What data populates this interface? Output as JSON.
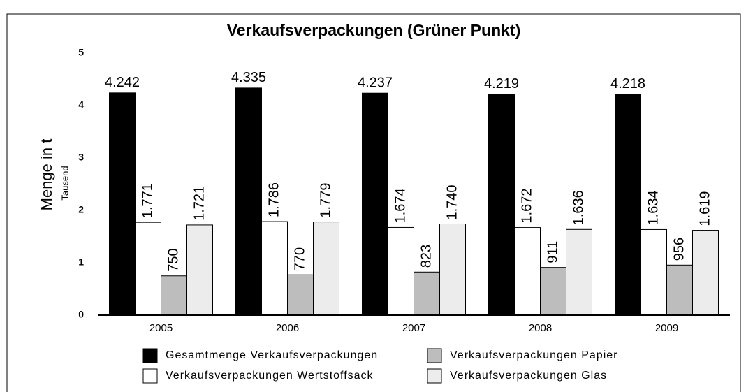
{
  "chart_data": {
    "type": "bar",
    "title": "Verkaufsverpackungen (Grüner Punkt)",
    "y_label": "Menge in t",
    "y_unit": "Tausend",
    "categories": [
      "2005",
      "2006",
      "2007",
      "2008",
      "2009"
    ],
    "series": [
      {
        "name": "Gesamtmenge Verkaufsverpackungen",
        "color": "#000000",
        "values": [
          4.242,
          4.335,
          4.237,
          4.219,
          4.218
        ],
        "value_labels": [
          "4.242",
          "4.335",
          "4.237",
          "4.219",
          "4.218"
        ]
      },
      {
        "name": "Verkaufsverpackungen Wertstoffsack",
        "color": "#ffffff",
        "values": [
          1.771,
          1.786,
          1.674,
          1.672,
          1.634
        ],
        "value_labels": [
          "1.771",
          "1.786",
          "1.674",
          "1.672",
          "1.634"
        ]
      },
      {
        "name": "Verkaufsverpackungen Papier",
        "color": "#bdbdbd",
        "values": [
          0.75,
          0.77,
          0.823,
          0.911,
          0.956
        ],
        "value_labels": [
          "750",
          "770",
          "823",
          "911",
          "956"
        ]
      },
      {
        "name": "Verkaufsverpackungen Glas",
        "color": "#ececec",
        "values": [
          1.721,
          1.779,
          1.74,
          1.636,
          1.619
        ],
        "value_labels": [
          "1.721",
          "1.779",
          "1.740",
          "1.636",
          "1.619"
        ]
      }
    ],
    "ylim": [
      0,
      5
    ],
    "yticks": [
      0,
      1,
      2,
      3,
      4,
      5
    ]
  }
}
